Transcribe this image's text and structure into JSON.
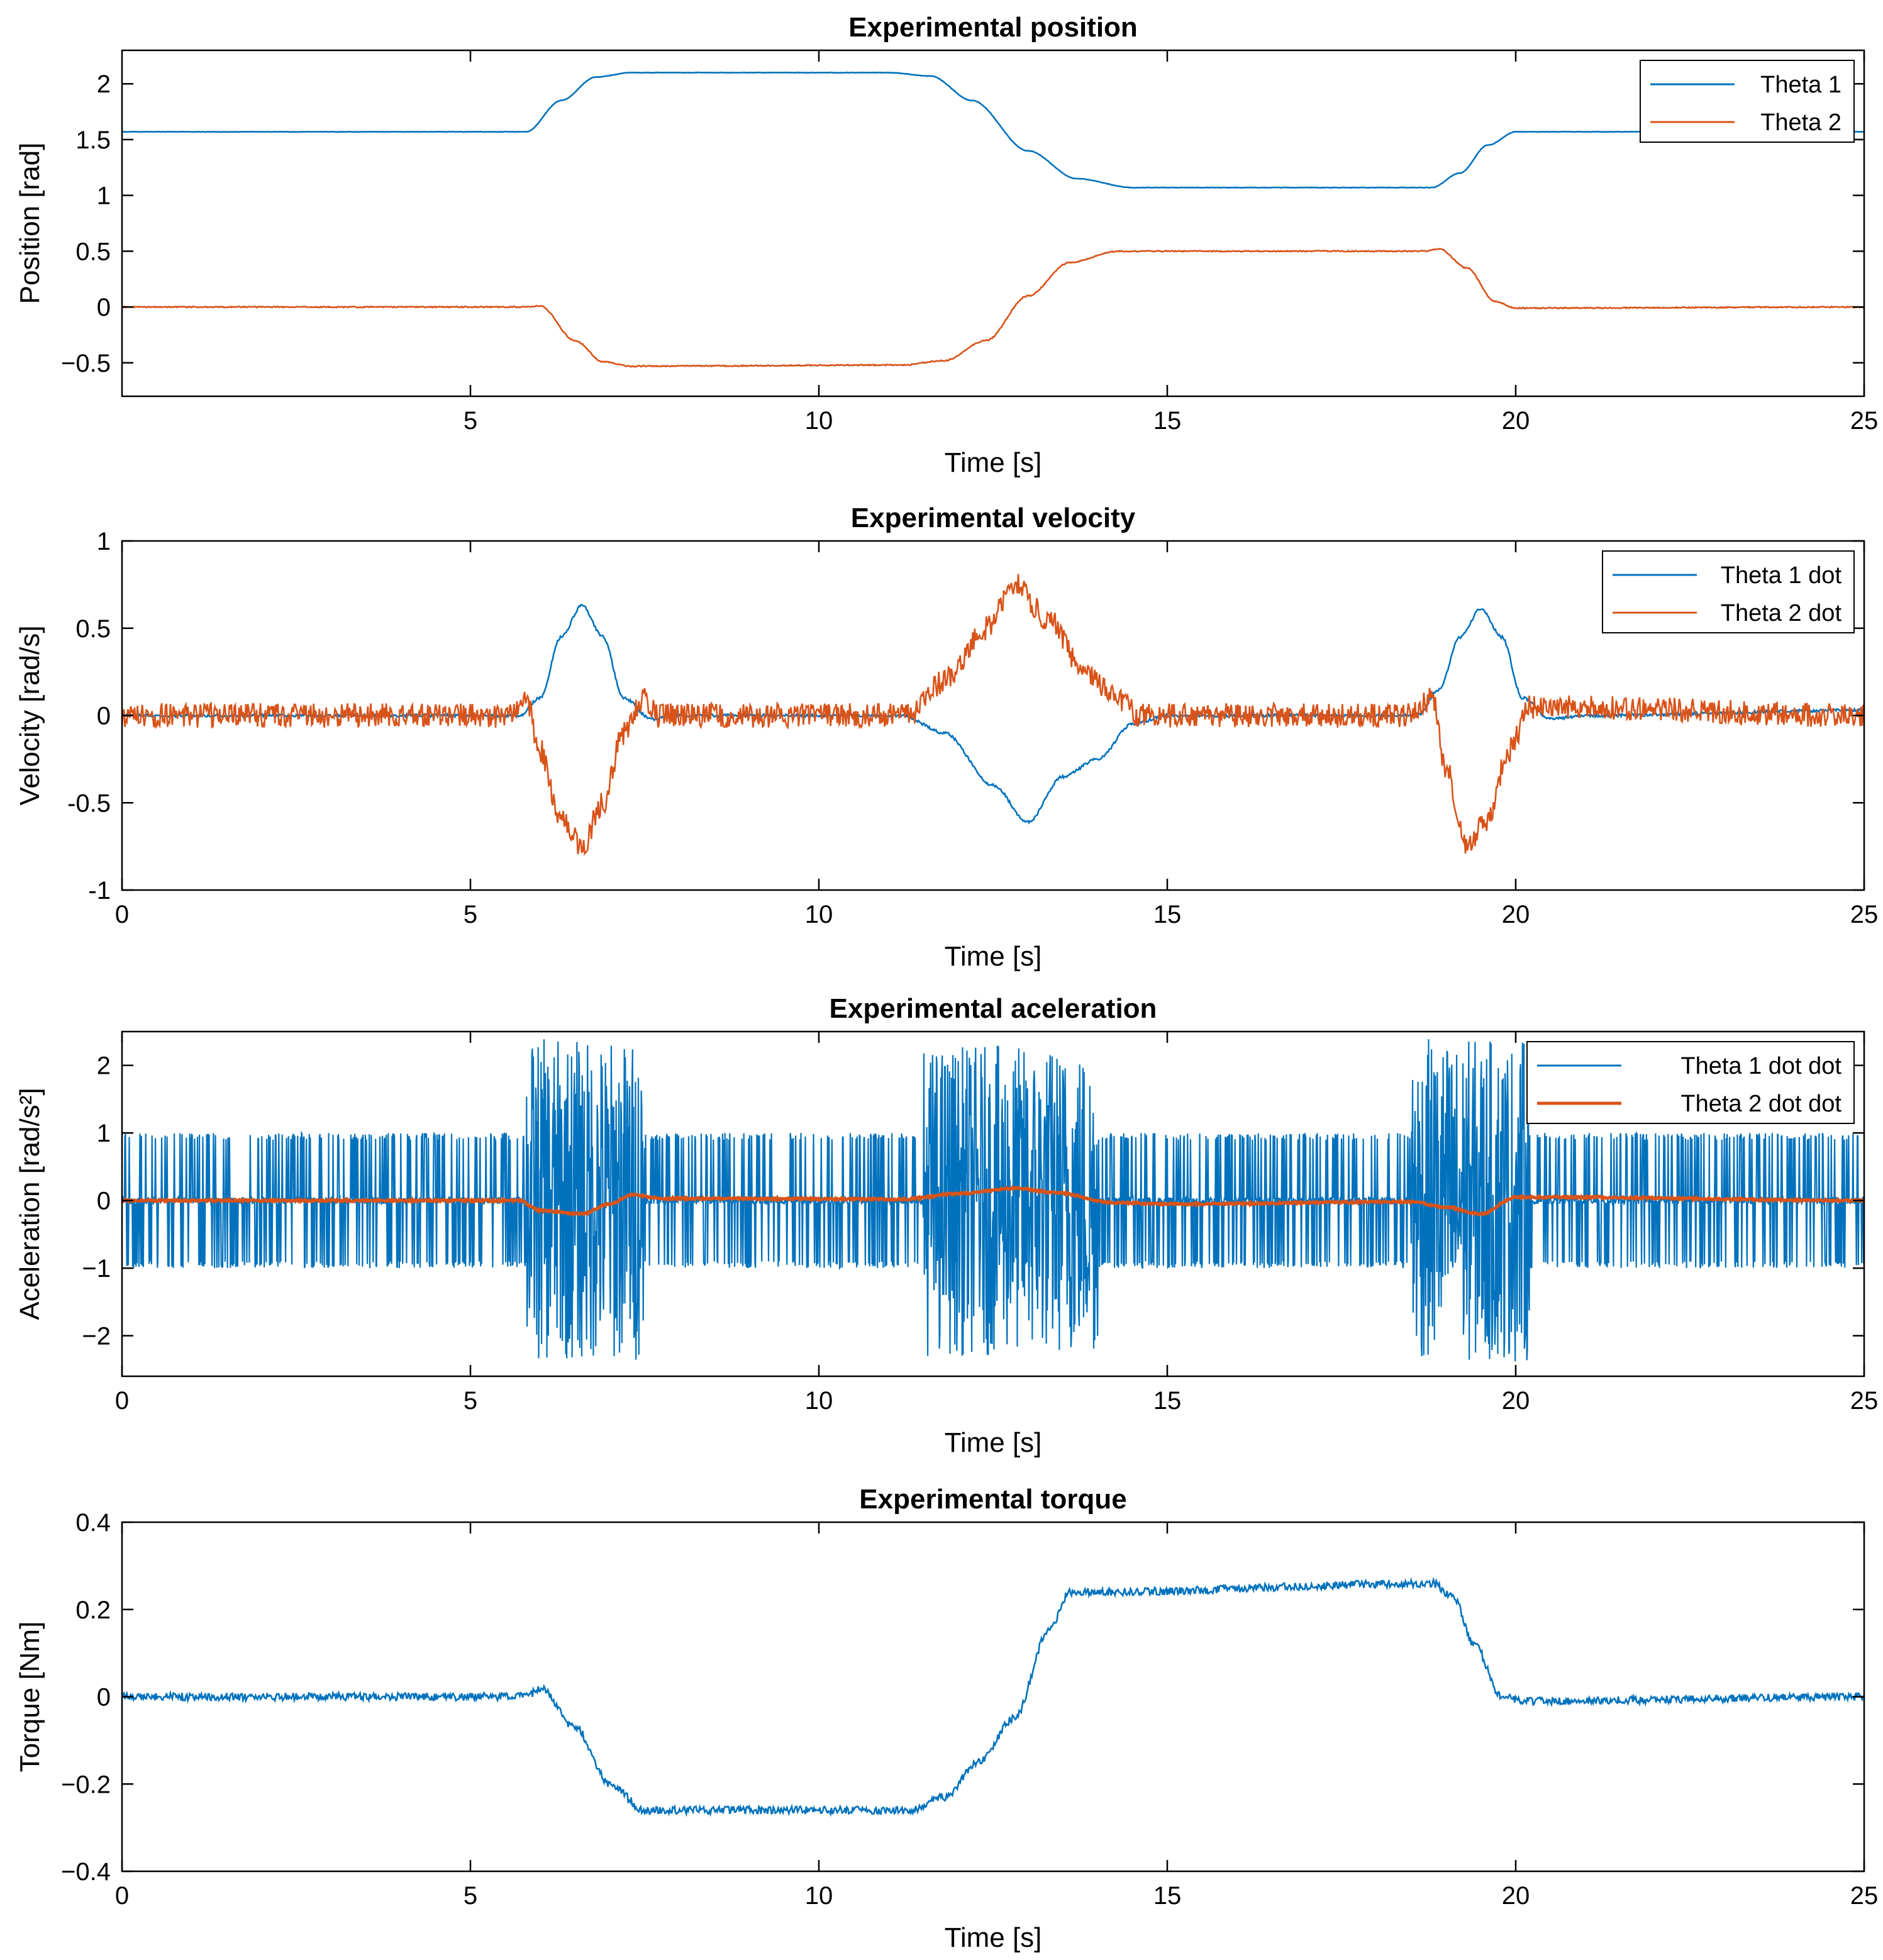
{
  "colors": {
    "theta1": "#0072BD",
    "theta2": "#D95319"
  },
  "chart_data": [
    {
      "type": "line",
      "title": "Experimental position",
      "xlabel": "Time [s]",
      "ylabel": "Position [rad]",
      "xlim": [
        0,
        25
      ],
      "ylim": [
        -0.8,
        2.3
      ],
      "xticks": [
        5,
        10,
        15,
        20,
        25
      ],
      "yticks": [
        -0.5,
        0,
        0.5,
        1,
        1.5,
        2
      ],
      "xticklabels": [
        "5",
        "10",
        "15",
        "20",
        "25"
      ],
      "yticklabels": [
        "−0.5",
        "0",
        "0.5",
        "1",
        "1.5",
        "2"
      ],
      "legend": "top-right",
      "series": [
        {
          "name": "Theta 1",
          "color": "#0072BD",
          "noise": 0.002,
          "points": [
            [
              0,
              1.57
            ],
            [
              5.8,
              1.57
            ],
            [
              6.3,
              1.85
            ],
            [
              6.8,
              2.06
            ],
            [
              7.3,
              2.1
            ],
            [
              11.0,
              2.1
            ],
            [
              11.6,
              2.07
            ],
            [
              12.2,
              1.85
            ],
            [
              13.0,
              1.4
            ],
            [
              13.7,
              1.15
            ],
            [
              14.5,
              1.07
            ],
            [
              18.8,
              1.07
            ],
            [
              19.2,
              1.2
            ],
            [
              19.6,
              1.45
            ],
            [
              20.0,
              1.57
            ],
            [
              25,
              1.57
            ]
          ]
        },
        {
          "name": "Theta 2",
          "color": "#D95319",
          "noise": 0.005,
          "points": [
            [
              0,
              0
            ],
            [
              5.8,
              0
            ],
            [
              6.0,
              0.01
            ],
            [
              6.5,
              -0.3
            ],
            [
              6.9,
              -0.49
            ],
            [
              7.3,
              -0.53
            ],
            [
              11.2,
              -0.52
            ],
            [
              11.8,
              -0.48
            ],
            [
              12.4,
              -0.3
            ],
            [
              13.0,
              0.1
            ],
            [
              13.6,
              0.4
            ],
            [
              14.3,
              0.5
            ],
            [
              18.7,
              0.5
            ],
            [
              18.9,
              0.52
            ],
            [
              19.3,
              0.35
            ],
            [
              19.7,
              0.05
            ],
            [
              20.0,
              -0.01
            ],
            [
              25,
              0
            ]
          ]
        }
      ]
    },
    {
      "type": "line",
      "title": "Experimental velocity",
      "xlabel": "Time [s]",
      "ylabel": "Velocity [rad/s]",
      "xlim": [
        0,
        25
      ],
      "ylim": [
        -1,
        1
      ],
      "xticks": [
        0,
        5,
        10,
        15,
        20,
        25
      ],
      "yticks": [
        -1,
        -0.5,
        0,
        0.5,
        1
      ],
      "xticklabels": [
        "0",
        "5",
        "10",
        "15",
        "20",
        "25"
      ],
      "yticklabels": [
        "-1",
        "-0.5",
        "0",
        "0.5",
        "1"
      ],
      "legend": "top-right",
      "series": [
        {
          "name": "Theta 1 dot",
          "color": "#0072BD",
          "noise": 0.008,
          "points": [
            [
              0,
              0
            ],
            [
              5.7,
              0
            ],
            [
              6.0,
              0.1
            ],
            [
              6.3,
              0.45
            ],
            [
              6.6,
              0.63
            ],
            [
              6.9,
              0.45
            ],
            [
              7.2,
              0.1
            ],
            [
              7.6,
              -0.02
            ],
            [
              8,
              0
            ],
            [
              11.2,
              0
            ],
            [
              11.8,
              -0.1
            ],
            [
              12.5,
              -0.4
            ],
            [
              13.0,
              -0.61
            ],
            [
              13.5,
              -0.35
            ],
            [
              14.0,
              -0.25
            ],
            [
              14.5,
              -0.05
            ],
            [
              15,
              0
            ],
            [
              18.6,
              0
            ],
            [
              18.9,
              0.15
            ],
            [
              19.2,
              0.45
            ],
            [
              19.5,
              0.61
            ],
            [
              19.8,
              0.45
            ],
            [
              20.1,
              0.1
            ],
            [
              20.5,
              -0.02
            ],
            [
              21,
              0
            ],
            [
              25,
              0.03
            ]
          ]
        },
        {
          "name": "Theta 2 dot",
          "color": "#D95319",
          "noise": 0.07,
          "points": [
            [
              0,
              0
            ],
            [
              5.5,
              0
            ],
            [
              5.8,
              0.1
            ],
            [
              6.0,
              -0.2
            ],
            [
              6.3,
              -0.6
            ],
            [
              6.6,
              -0.75
            ],
            [
              6.9,
              -0.5
            ],
            [
              7.2,
              -0.1
            ],
            [
              7.5,
              0.1
            ],
            [
              7.7,
              0
            ],
            [
              11.3,
              0
            ],
            [
              11.8,
              0.2
            ],
            [
              12.4,
              0.5
            ],
            [
              12.8,
              0.75
            ],
            [
              13.3,
              0.55
            ],
            [
              13.8,
              0.25
            ],
            [
              14.3,
              0.1
            ],
            [
              14.6,
              0
            ],
            [
              18.5,
              0
            ],
            [
              18.8,
              0.1
            ],
            [
              19.0,
              -0.3
            ],
            [
              19.3,
              -0.75
            ],
            [
              19.6,
              -0.6
            ],
            [
              19.9,
              -0.2
            ],
            [
              20.2,
              0.05
            ],
            [
              20.5,
              0.05
            ],
            [
              25,
              0
            ]
          ]
        }
      ]
    },
    {
      "type": "line",
      "title": "Experimental aceleration",
      "xlabel": "Time [s]",
      "ylabel": "Aceleration [rad/s²]",
      "xlim": [
        0,
        25
      ],
      "ylim": [
        -2.6,
        2.5
      ],
      "xticks": [
        0,
        5,
        10,
        15,
        20,
        25
      ],
      "yticks": [
        -2,
        -1,
        0,
        1,
        2
      ],
      "xticklabels": [
        "0",
        "5",
        "10",
        "15",
        "20",
        "25"
      ],
      "yticklabels": [
        "−2",
        "−1",
        "0",
        "1",
        "2"
      ],
      "legend": "top-right",
      "series": [
        {
          "name": "Theta 1 dot dot",
          "color": "#0072BD",
          "style": "spiky",
          "spike_amplitude": 1.0,
          "burst_windows": [
            [
              5.8,
              7.5,
              2.4
            ],
            [
              11.5,
              14.0,
              2.3
            ],
            [
              18.5,
              20.2,
              2.4
            ]
          ]
        },
        {
          "name": "Theta 2 dot dot",
          "color": "#D95319",
          "noise": 0.015,
          "points": [
            [
              0,
              0
            ],
            [
              5.7,
              0
            ],
            [
              6.0,
              -0.15
            ],
            [
              6.6,
              -0.2
            ],
            [
              7.0,
              -0.05
            ],
            [
              7.3,
              0.08
            ],
            [
              7.8,
              0.03
            ],
            [
              11.2,
              0.02
            ],
            [
              12.0,
              0.1
            ],
            [
              12.8,
              0.18
            ],
            [
              13.4,
              0.12
            ],
            [
              14.2,
              -0.03
            ],
            [
              15,
              -0.05
            ],
            [
              18.5,
              -0.02
            ],
            [
              19.0,
              -0.1
            ],
            [
              19.5,
              -0.2
            ],
            [
              20.0,
              0.05
            ],
            [
              20.5,
              0.05
            ],
            [
              25,
              0
            ]
          ]
        }
      ]
    },
    {
      "type": "line",
      "title": "Experimental torque",
      "xlabel": "Time [s]",
      "ylabel": "Torque [Nm]",
      "xlim": [
        0,
        25
      ],
      "ylim": [
        -0.4,
        0.4
      ],
      "xticks": [
        0,
        5,
        10,
        15,
        20,
        25
      ],
      "yticks": [
        -0.4,
        -0.2,
        0,
        0.2,
        0.4
      ],
      "xticklabels": [
        "0",
        "5",
        "10",
        "15",
        "20",
        "25"
      ],
      "yticklabels": [
        "−0.4",
        "−0.2",
        "0",
        "0.2",
        "0.4"
      ],
      "legend": "none",
      "series": [
        {
          "name": "Torque",
          "color": "#0072BD",
          "noise": 0.009,
          "points": [
            [
              0,
              0
            ],
            [
              5.8,
              0
            ],
            [
              6.0,
              0.02
            ],
            [
              6.5,
              -0.07
            ],
            [
              7.0,
              -0.2
            ],
            [
              7.5,
              -0.26
            ],
            [
              11.3,
              -0.26
            ],
            [
              11.8,
              -0.23
            ],
            [
              12.3,
              -0.15
            ],
            [
              12.8,
              -0.05
            ],
            [
              13.3,
              0.15
            ],
            [
              13.6,
              0.24
            ],
            [
              14.0,
              0.24
            ],
            [
              18.8,
              0.26
            ],
            [
              19.1,
              0.23
            ],
            [
              19.4,
              0.12
            ],
            [
              19.8,
              0.0
            ],
            [
              20.2,
              -0.01
            ],
            [
              25,
              0
            ]
          ]
        }
      ]
    }
  ]
}
